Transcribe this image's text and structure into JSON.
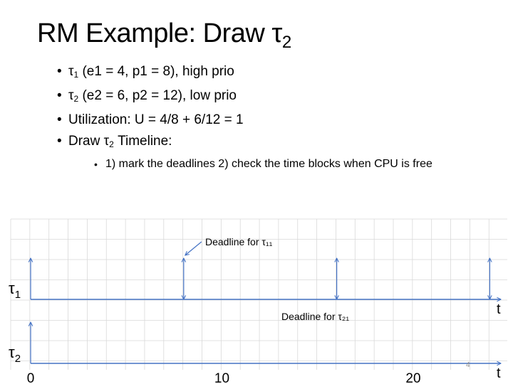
{
  "slide": {
    "title_main": "RM Example: Draw  τ",
    "title_sub": "2",
    "bullets": [
      {
        "sym": "τ",
        "sub": "1",
        "text": " (e1 = 4, p1 = 8), high prio"
      },
      {
        "sym": "τ",
        "sub": "2",
        "text": " (e2 = 6, p2 = 12), low prio"
      },
      {
        "text": "Utilization: U = 4/8 + 6/12 = 1"
      },
      {
        "pre": "Draw τ",
        "sub": "2",
        "text": "  Timeline:"
      }
    ],
    "sub_bullet": "1) mark the deadlines 2) check the time blocks when CPU is free",
    "slide_number": "4"
  },
  "chart_data": {
    "type": "timeline",
    "x_axis_label": "t",
    "tick_labels": [
      {
        "x": 0,
        "label": "0"
      },
      {
        "x": 10,
        "label": "10"
      },
      {
        "x": 20,
        "label": "20"
      }
    ],
    "rows": [
      {
        "label": "τ",
        "sub": "1",
        "release_deadline_arrows": [
          0,
          8,
          16,
          24
        ]
      },
      {
        "label": "τ",
        "sub": "2",
        "release_deadline_arrows": [
          0
        ]
      }
    ],
    "annotations": [
      {
        "text": "Deadline for τ₁₁",
        "x": 8
      },
      {
        "text": "Deadline for τ₂₁",
        "x": 16
      }
    ],
    "grid": true,
    "colors": {
      "axis": "#4472c4",
      "grid": "#d9d9d9",
      "text": "#000000"
    }
  }
}
